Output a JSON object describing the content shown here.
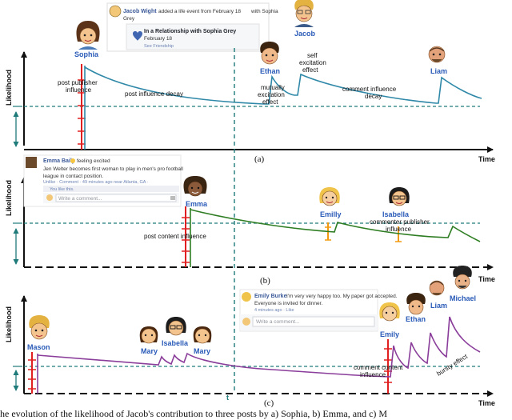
{
  "axes": {
    "ylabel": "Likelihood",
    "xlabel": "Time",
    "t_label": "t"
  },
  "panels": {
    "a": {
      "label": "(a)",
      "fb_post": {
        "author": "Jacob Wight",
        "action": "added a life event from February 18",
        "with": "with Sophia",
        "with2": "Grey",
        "event_title": "In a Relationship with Sophia Grey",
        "event_date": "February 18",
        "event_link": "See Friendship"
      },
      "names": {
        "sophia": "Sophia",
        "jacob": "Jacob",
        "ethan": "Ethan",
        "liam": "Liam"
      },
      "annotations": {
        "post_publisher": [
          "post publisher",
          "influence"
        ],
        "decay": "post influence decay",
        "mutual": [
          "mutually",
          "excitation",
          "effect"
        ],
        "self": [
          "self",
          "excitation",
          "effect"
        ],
        "comment_decay": [
          "comment influence",
          "decay"
        ]
      }
    },
    "b": {
      "label": "(b)",
      "fb_post": {
        "author": "Emma Baily",
        "status": "feeling excited",
        "line1": "Jen Welter becomes first woman to play in men's pro football",
        "line2": "league in contact position.",
        "meta": "Unlike · Comment · 49 minutes ago near Atlanta, GA ·",
        "likes": "You like this.",
        "comment_placeholder": "Write a comment..."
      },
      "names": {
        "emma": "Emma",
        "emily": "Emilly",
        "isabella": "Isabella"
      },
      "annotations": {
        "post_content": "post  content influence",
        "commenter": [
          "commenter publisher",
          "influence"
        ]
      }
    },
    "c": {
      "label": "(c)",
      "fb_post": {
        "author": "Emily Burke",
        "line1": "I'm very very happy too. My paper got accepted.",
        "line2": "Everyone is invited for dinner.",
        "meta": "4 minutes ago · Like",
        "comment_placeholder": "Write a comment..."
      },
      "names": {
        "mason": "Mason",
        "mary1": "Mary",
        "isabella": "Isabella",
        "mary2": "Mary",
        "emily": "Emily",
        "ethan": "Ethan",
        "liam": "Liam",
        "michael": "Michael"
      },
      "annotations": {
        "comment_content": [
          "comment  content",
          "influence"
        ],
        "bursty": "bursty effect"
      }
    }
  },
  "caption": "he evolution of the likelihood of Jacob's contribution to three posts by a) Sophia, b) Emma, and c) M",
  "colors": {
    "curve_a": "#2f88a8",
    "curve_b": "#2e7d22",
    "curve_c": "#8a3d9a",
    "red_bar": "#e02020",
    "orange_bar": "#f29a10",
    "teal": "#1f7a7a",
    "name_blue": "#2a5bb8"
  }
}
